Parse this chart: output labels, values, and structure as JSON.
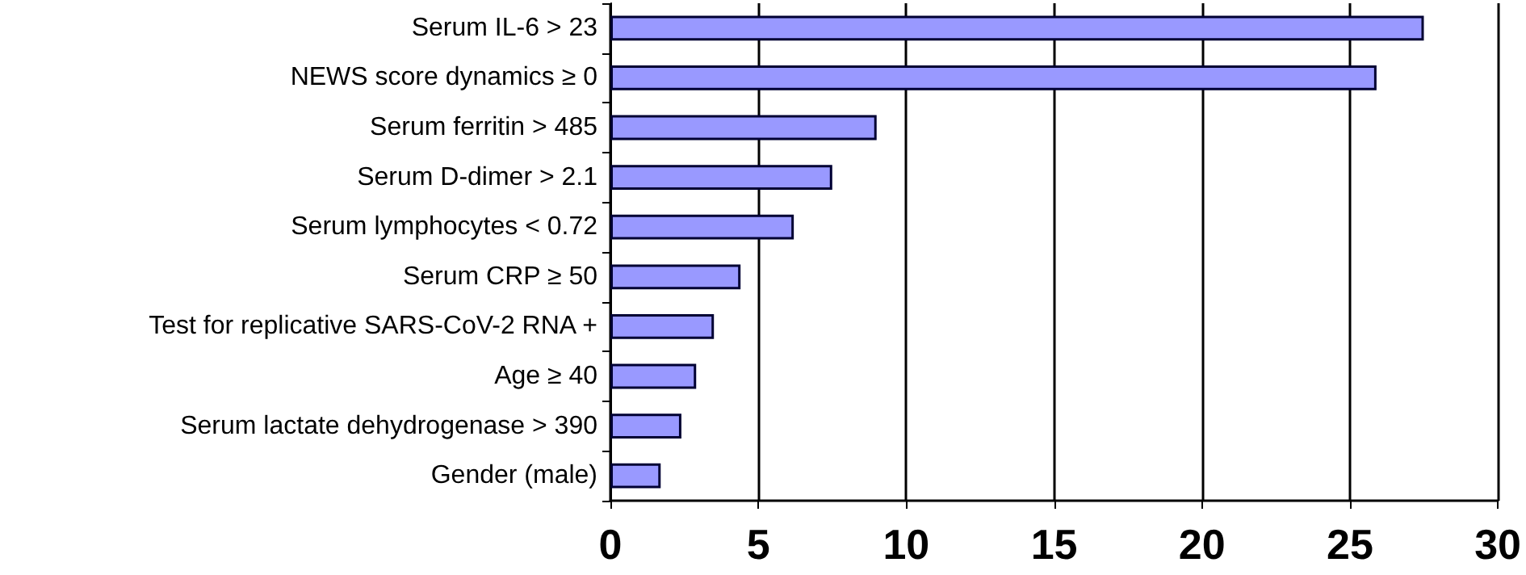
{
  "chart_data": {
    "type": "bar",
    "orientation": "horizontal",
    "categories": [
      "Serum IL-6 > 23",
      "NEWS score dynamics ≥ 0",
      "Serum ferritin > 485",
      "Serum D-dimer > 2.1",
      "Serum lymphocytes < 0.72",
      "Serum CRP ≥ 50",
      "Test for replicative SARS-CoV-2 RNA +",
      "Age ≥ 40",
      "Serum lactate dehydrogenase > 390",
      "Gender (male)"
    ],
    "values": [
      27.5,
      25.9,
      9.0,
      7.5,
      6.2,
      4.4,
      3.5,
      2.9,
      2.4,
      1.7
    ],
    "color": "#9999ff",
    "xlim": [
      0,
      30
    ],
    "xticks": [
      0,
      5,
      10,
      15,
      20,
      25,
      30
    ],
    "grid": "x"
  }
}
